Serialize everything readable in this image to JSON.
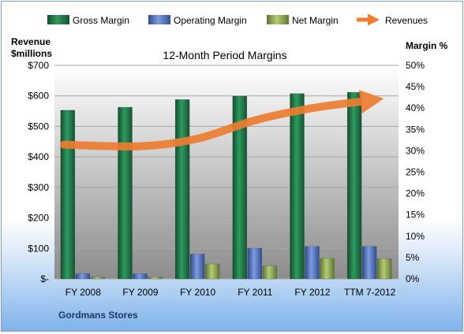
{
  "chart_data": {
    "type": "bar",
    "title": "12-Month Period Margins",
    "categories": [
      "FY 2008",
      "FY 2009",
      "FY 2010",
      "FY 2011",
      "FY 2012",
      "TTM 7-2012"
    ],
    "series": [
      {
        "name": "Gross Margin",
        "axis": "right",
        "color": "#1e7145",
        "values": [
          39.5,
          40.2,
          42.0,
          42.8,
          43.4,
          43.7
        ]
      },
      {
        "name": "Operating Margin",
        "axis": "right",
        "color": "#4f6fb3",
        "values": [
          1.2,
          1.2,
          5.8,
          7.2,
          7.6,
          7.6
        ]
      },
      {
        "name": "Net Margin",
        "axis": "right",
        "color": "#8faa4d",
        "values": [
          0.4,
          0.4,
          3.5,
          3.0,
          4.8,
          4.7
        ]
      },
      {
        "name": "Revenues",
        "axis": "left",
        "type": "line",
        "color": "#ed7d31",
        "values": [
          440,
          435,
          460,
          520,
          560,
          585
        ]
      }
    ],
    "left_axis": {
      "title_lines": [
        "Revenue",
        "$millions"
      ],
      "min": 0,
      "max": 700,
      "step": 100,
      "tick_labels": [
        "$-",
        "$100",
        "$200",
        "$300",
        "$400",
        "$500",
        "$600",
        "$700"
      ]
    },
    "right_axis": {
      "title": "Margin %",
      "min": 0,
      "max": 50,
      "step": 5,
      "tick_labels": [
        "0%",
        "5%",
        "10%",
        "15%",
        "20%",
        "25%",
        "30%",
        "35%",
        "40%",
        "45%",
        "50%"
      ]
    },
    "grid": true,
    "legend_position": "top"
  },
  "footer": "Gordmans Stores"
}
